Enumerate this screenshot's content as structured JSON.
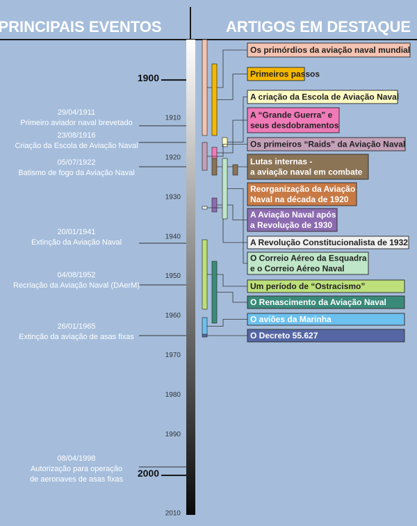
{
  "header": {
    "left": "PRINCIPAIS EVENTOS",
    "right": "ARTIGOS EM DESTAQUE"
  },
  "timeline": {
    "major_years": [
      1900,
      2000
    ],
    "decades": [
      1910,
      1920,
      1930,
      1940,
      1950,
      1960,
      1970,
      1980,
      1990,
      2010
    ]
  },
  "events": [
    {
      "date": "29/04/1911",
      "lines": [
        "Primeiro aviador naval brevetado"
      ]
    },
    {
      "date": "23/08/1916",
      "lines": [
        "Criação da Escola de Aviação Naval"
      ]
    },
    {
      "date": "05/07/1922",
      "lines": [
        "Batismo de fogo da Aviação Naval"
      ]
    },
    {
      "date": "20/01/1941",
      "lines": [
        "Extinção da Aviação Naval"
      ]
    },
    {
      "date": "04/08/1952",
      "lines": [
        "Recriação da Aviação Naval (DAerM)"
      ]
    },
    {
      "date": "26/01/1965",
      "lines": [
        "Extinção da aviação de asas fixas"
      ]
    },
    {
      "date": "08/04/1998",
      "lines": [
        "Autorização para operação",
        "de aeronaves de asas fixas"
      ]
    }
  ],
  "articles": [
    {
      "lines": [
        "Os primórdios da aviação naval mundial"
      ]
    },
    {
      "lines": [
        "Primeiros passos"
      ]
    },
    {
      "lines": [
        "A criação da Escola de Aviação Naval"
      ]
    },
    {
      "lines": [
        "A “Grande Guerra” e",
        "seus desdobramentos"
      ]
    },
    {
      "lines": [
        "Os primeiros “Raids” da Aviação Naval"
      ]
    },
    {
      "lines": [
        "Lutas internas -",
        "a aviação naval em combate"
      ]
    },
    {
      "lines": [
        "Reorganização da Aviação",
        "Naval na década de 1920"
      ]
    },
    {
      "lines": [
        "A Aviação Naval após",
        "a Revolução de 1930"
      ]
    },
    {
      "lines": [
        "A Revolução Constitucionalista de 1932"
      ]
    },
    {
      "lines": [
        "O Correio Aéreo da Esquadra",
        "e o Correio Aéreo Naval"
      ]
    },
    {
      "lines": [
        "Um período de “Ostracismo”"
      ]
    },
    {
      "lines": [
        "O Renascimento da Aviação Naval"
      ]
    },
    {
      "lines": [
        "O aviões da Marinha"
      ]
    },
    {
      "lines": [
        "O Decreto 55.627"
      ]
    }
  ]
}
